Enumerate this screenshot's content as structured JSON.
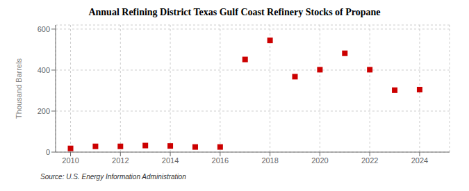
{
  "chart_data": {
    "type": "scatter",
    "title": "Annual Refining District Texas Gulf Coast Refinery Stocks of Propane",
    "ylabel": "Thousand Barrels",
    "annotations": [
      "Source: U.S. Energy Information Administration"
    ],
    "x": [
      2010,
      2011,
      2012,
      2013,
      2014,
      2015,
      2016,
      2017,
      2018,
      2019,
      2020,
      2021,
      2022,
      2023,
      2024
    ],
    "values": [
      18,
      28,
      28,
      32,
      30,
      25,
      25,
      452,
      545,
      368,
      402,
      482,
      402,
      302,
      305
    ],
    "color": "#cc0000",
    "marker": "square",
    "xlim": [
      2009.4,
      2025.2
    ],
    "xticks": [
      2010,
      2012,
      2014,
      2016,
      2018,
      2020,
      2022,
      2024
    ],
    "ylim": [
      0,
      620
    ],
    "yticks": [
      0,
      200,
      400,
      600
    ],
    "grid": true
  }
}
